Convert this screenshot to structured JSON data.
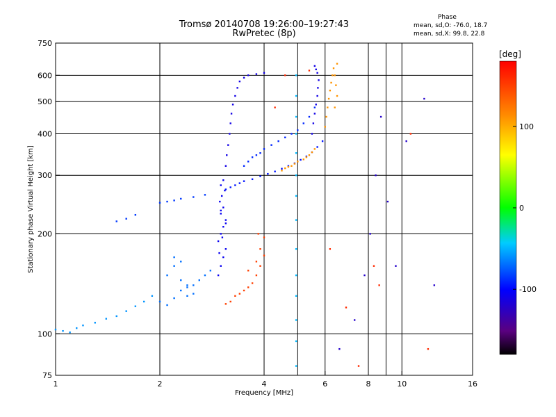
{
  "chart_data": {
    "type": "scatter",
    "title": "Tromsø 20140708 19:26:00–19:27:43",
    "subtitle": "RwPretec (8p)",
    "xlabel": "Frequency [MHz]",
    "ylabel": "Stationary phase Virtual Height [km]",
    "x_scale": "log",
    "y_scale": "log",
    "xlim": [
      1,
      16
    ],
    "ylim": [
      75,
      750
    ],
    "xticks": [
      1,
      2,
      4,
      6,
      8,
      10,
      16
    ],
    "xtick_labels": [
      "1",
      "2",
      "4",
      "6",
      "8",
      "10",
      "16"
    ],
    "yticks": [
      75,
      100,
      200,
      300,
      400,
      500,
      600,
      750
    ],
    "ytick_labels": [
      "75",
      "100",
      "200",
      "300",
      "400",
      "500",
      "600",
      "750"
    ],
    "x_gridlines": [
      2,
      4,
      5,
      6,
      8,
      9,
      10
    ],
    "y_gridlines": [
      100,
      200,
      300,
      400,
      500,
      600
    ],
    "colorbar": {
      "label": "[deg]",
      "range": [
        -180,
        180
      ],
      "ticks": [
        100,
        0,
        -100
      ],
      "tick_labels": [
        "100",
        "0",
        "-100"
      ]
    },
    "stats": {
      "title": "Phase",
      "o_mode": "mean, sd,O: -76.0, 18.7",
      "x_mode": "mean, sd,X:  99.8, 22.8"
    },
    "point_groups": [
      {
        "x": [
          1.0,
          1.05,
          1.1,
          1.15,
          1.2,
          1.3,
          1.4,
          1.5,
          1.6,
          1.7,
          1.8,
          1.9
        ],
        "y": [
          103,
          102,
          101,
          104,
          106,
          108,
          111,
          113,
          117,
          121,
          125,
          130
        ],
        "phase": -60
      },
      {
        "x": [
          2.0,
          2.1,
          2.2,
          2.3,
          2.4,
          2.5,
          2.6,
          2.7,
          2.8,
          2.1,
          2.2,
          2.3,
          2.4,
          2.5,
          2.2,
          2.3,
          2.4
        ],
        "y": [
          125,
          122,
          128,
          135,
          130,
          140,
          145,
          150,
          155,
          150,
          160,
          145,
          138,
          132,
          170,
          165,
          140
        ],
        "phase": -70
      },
      {
        "x": [
          2.0,
          2.1,
          2.2,
          2.3,
          2.5,
          2.7,
          1.5,
          1.6,
          1.7
        ],
        "y": [
          248,
          250,
          252,
          255,
          258,
          262,
          218,
          222,
          228
        ],
        "phase": -85
      },
      {
        "x": [
          2.95,
          3.0,
          3.05,
          3.1,
          2.95,
          3.0,
          3.05,
          3.1,
          3.0,
          3.05,
          2.98,
          3.02,
          3.08,
          3.0,
          3.05,
          2.97,
          3.03,
          3.1,
          3.0
        ],
        "y": [
          150,
          160,
          170,
          180,
          190,
          200,
          210,
          220,
          230,
          240,
          250,
          260,
          270,
          280,
          290,
          175,
          195,
          215,
          235
        ],
        "phase": -105
      },
      {
        "x": [
          3.1,
          3.2,
          3.3,
          3.4,
          3.5,
          3.7,
          3.9,
          4.1,
          4.3,
          4.5,
          4.7,
          4.9,
          5.1,
          5.3,
          5.5,
          5.7,
          5.9
        ],
        "y": [
          272,
          276,
          280,
          284,
          288,
          292,
          298,
          303,
          308,
          314,
          320,
          326,
          334,
          342,
          352,
          365,
          380
        ],
        "phase": -95
      },
      {
        "x": [
          3.1,
          3.12,
          3.15,
          3.18,
          3.2,
          3.22,
          3.25,
          3.3,
          3.35,
          3.4,
          3.5,
          3.6,
          3.8,
          4.0
        ],
        "y": [
          320,
          345,
          370,
          400,
          430,
          460,
          490,
          520,
          550,
          575,
          590,
          600,
          605,
          610
        ],
        "phase": -110
      },
      {
        "x": [
          3.5,
          3.6,
          3.7,
          3.8,
          3.9,
          4.0,
          4.2,
          4.4,
          4.6,
          4.8,
          5.0,
          5.2,
          5.4,
          5.6
        ],
        "y": [
          320,
          330,
          340,
          345,
          350,
          360,
          370,
          380,
          390,
          400,
          410,
          430,
          450,
          480
        ],
        "phase": -90
      },
      {
        "x": [
          5.5,
          5.55,
          5.6,
          5.65,
          5.7,
          5.72,
          5.75,
          5.7,
          5.65,
          5.6
        ],
        "y": [
          400,
          430,
          460,
          490,
          520,
          550,
          580,
          610,
          625,
          640
        ],
        "phase": -110
      },
      {
        "x": [
          3.3,
          3.4,
          3.5,
          3.6,
          3.7,
          3.8,
          3.9,
          4.0,
          3.2,
          3.1,
          3.6,
          3.8,
          3.9,
          4.0,
          3.85
        ],
        "y": [
          130,
          132,
          135,
          138,
          142,
          150,
          160,
          172,
          125,
          123,
          155,
          165,
          180,
          195,
          200
        ],
        "phase": 150
      },
      {
        "x": [
          4.5,
          4.6,
          4.7,
          4.8,
          4.9,
          5.0,
          5.2,
          5.3,
          5.4,
          5.5,
          5.6
        ],
        "y": [
          310,
          315,
          318,
          320,
          325,
          330,
          335,
          340,
          345,
          352,
          360
        ],
        "phase": 110
      },
      {
        "x": [
          6.0,
          6.05,
          6.1,
          6.15,
          6.2,
          6.25,
          6.3,
          6.35,
          6.4,
          6.45,
          6.5,
          6.5,
          6.4
        ],
        "y": [
          420,
          450,
          480,
          510,
          540,
          570,
          600,
          630,
          600,
          560,
          520,
          650,
          480
        ],
        "phase": 110
      },
      {
        "x": [
          4.95,
          4.95,
          4.95,
          4.95,
          4.95,
          4.95,
          4.95,
          4.95,
          4.95,
          4.95,
          4.95,
          4.95,
          4.95,
          4.95
        ],
        "y": [
          80,
          95,
          110,
          130,
          150,
          180,
          220,
          260,
          300,
          350,
          400,
          450,
          520,
          600
        ],
        "phase": -50
      },
      {
        "x": [
          6.6,
          7.3,
          7.8,
          8.1,
          8.4,
          8.7,
          9.1,
          9.6,
          10.3,
          11.6,
          12.4
        ],
        "y": [
          90,
          110,
          150,
          200,
          300,
          450,
          250,
          160,
          380,
          510,
          140
        ],
        "phase": -120
      },
      {
        "x": [
          6.2,
          6.9,
          7.5,
          8.3,
          8.6,
          10.6,
          11.9,
          4.6,
          4.3,
          5.4
        ],
        "y": [
          180,
          120,
          80,
          160,
          140,
          400,
          90,
          600,
          480,
          620
        ],
        "phase": 160
      }
    ]
  }
}
